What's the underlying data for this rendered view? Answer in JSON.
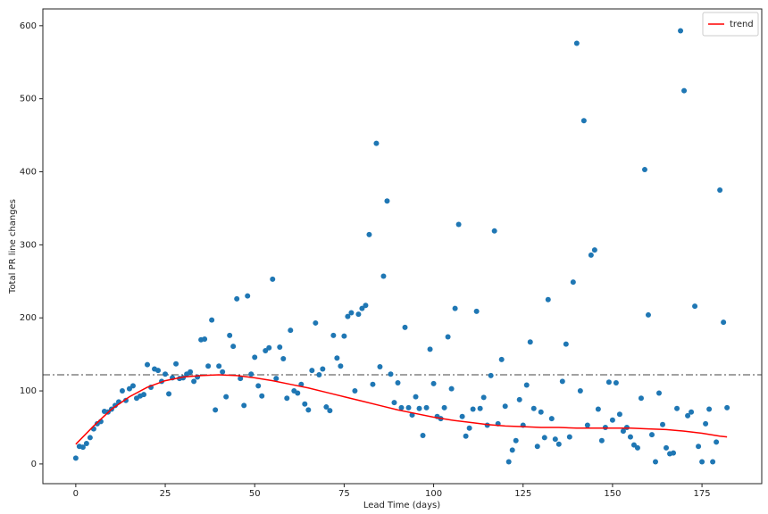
{
  "chart_data": {
    "type": "scatter",
    "xlabel": "Lead Time (days)",
    "ylabel": "Total PR  line changes",
    "xlim": [
      -9.2,
      191.7
    ],
    "ylim": [
      -27,
      623
    ],
    "xticks": [
      0,
      25,
      50,
      75,
      100,
      125,
      150,
      175
    ],
    "yticks": [
      0,
      100,
      200,
      300,
      400,
      500,
      600
    ],
    "legend": "upper right",
    "hlines": [
      {
        "value": 122,
        "color": "#444444",
        "style": "dashdot"
      }
    ],
    "x": [
      0,
      1,
      2,
      3,
      4,
      5,
      6,
      7,
      8,
      9,
      10,
      11,
      12,
      13,
      14,
      15,
      16,
      17,
      18,
      19,
      20,
      21,
      22,
      23,
      24,
      25,
      26,
      27,
      28,
      29,
      30,
      31,
      32,
      33,
      34,
      35,
      36,
      37,
      38,
      39,
      40,
      41,
      42,
      43,
      44,
      45,
      46,
      47,
      48,
      49,
      50,
      51,
      52,
      53,
      54,
      55,
      56,
      57,
      58,
      59,
      60,
      61,
      62,
      63,
      64,
      65,
      66,
      67,
      68,
      69,
      70,
      71,
      72,
      73,
      74,
      75,
      76,
      77,
      78,
      79,
      80,
      81,
      82,
      83,
      84,
      85,
      86,
      87,
      88,
      89,
      90,
      91,
      92,
      93,
      94,
      95,
      96,
      97,
      98,
      99,
      100,
      101,
      102,
      103,
      104,
      105,
      106,
      107,
      108,
      109,
      110,
      111,
      112,
      113,
      114,
      115,
      116,
      117,
      118,
      119,
      120,
      121,
      122,
      123,
      124,
      125,
      126,
      127,
      128,
      129,
      130,
      131,
      132,
      133,
      134,
      135,
      136,
      137,
      138,
      139,
      140,
      141,
      142,
      143,
      144,
      145,
      146,
      147,
      148,
      149,
      150,
      151,
      152,
      153,
      154,
      155,
      156,
      157,
      158,
      159,
      160,
      161,
      162,
      163,
      164,
      165,
      166,
      167,
      168,
      169,
      170,
      171,
      172,
      173,
      174,
      175,
      176,
      177,
      178,
      179,
      180,
      181,
      182
    ],
    "series": [
      {
        "color": "#1f77b4",
        "values": [
          8,
          24,
          23,
          28,
          36,
          48,
          55,
          58,
          72,
          71,
          75,
          80,
          85,
          100,
          87,
          103,
          107,
          90,
          93,
          95,
          136,
          105,
          130,
          128,
          113,
          123,
          96,
          118,
          137,
          117,
          118,
          123,
          126,
          113,
          119,
          170,
          171,
          134,
          197,
          74,
          134,
          126,
          92,
          176,
          161,
          226,
          117,
          80,
          230,
          123,
          146,
          107,
          93,
          155,
          159,
          253,
          117,
          160,
          144,
          90,
          183,
          100,
          97,
          109,
          82,
          74,
          128,
          193,
          122,
          130,
          78,
          73,
          176,
          145,
          134,
          175,
          202,
          207,
          100,
          205,
          213,
          217,
          314,
          109,
          439,
          133,
          257,
          360,
          123,
          84,
          111,
          77,
          187,
          77,
          67,
          92,
          76,
          39,
          77,
          157,
          110,
          65,
          62,
          77,
          174,
          103,
          213,
          328,
          65,
          38,
          49,
          75,
          209,
          76,
          91,
          53,
          121,
          319,
          55,
          143,
          79,
          3,
          19,
          32,
          88,
          53,
          108,
          167,
          76,
          24,
          71,
          36,
          225,
          62,
          34,
          27,
          113,
          164,
          37,
          249,
          576,
          100,
          470,
          53,
          286,
          293,
          75,
          32,
          50,
          112,
          60,
          111,
          68,
          45,
          50,
          37,
          26,
          22,
          90,
          403,
          204,
          40,
          3,
          97,
          54,
          22,
          14,
          15,
          76,
          593,
          511,
          66,
          71,
          216,
          24,
          3,
          55,
          75,
          3,
          30,
          375,
          194,
          77
        ]
      },
      {
        "name": "trend",
        "type": "line",
        "color": "#ff0000",
        "x": [
          0,
          5,
          10,
          15,
          20,
          25,
          30,
          35,
          40,
          45,
          50,
          55,
          60,
          65,
          70,
          75,
          80,
          85,
          90,
          95,
          100,
          105,
          110,
          115,
          120,
          125,
          130,
          135,
          140,
          145,
          150,
          155,
          160,
          165,
          170,
          175,
          180,
          182
        ],
        "values": [
          27,
          52,
          75,
          92,
          105,
          114,
          119,
          121,
          122,
          121,
          118,
          114,
          109,
          104,
          98,
          92,
          86,
          80,
          74,
          69,
          64,
          60,
          57,
          54,
          52,
          51,
          50,
          50,
          49,
          49,
          49,
          49,
          48,
          47,
          45,
          42,
          38,
          37
        ]
      }
    ]
  }
}
